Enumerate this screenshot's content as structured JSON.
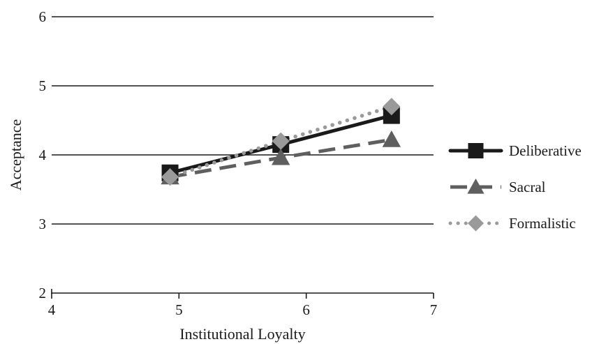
{
  "chart_data": {
    "type": "line",
    "xlabel": "Institutional Loyalty",
    "ylabel": "Acceptance",
    "xlim": [
      4,
      7
    ],
    "ylim": [
      2,
      6
    ],
    "xticks": [
      "4",
      "5",
      "6",
      "7"
    ],
    "yticks": [
      "2",
      "3",
      "4",
      "5",
      "6"
    ],
    "grid": "horizontal",
    "legend_position": "right",
    "series": [
      {
        "name": "Deliberative",
        "marker": "square",
        "line_style": "solid",
        "color": "#1a1a1a",
        "x": [
          4.93,
          5.8,
          6.67
        ],
        "y": [
          3.74,
          4.15,
          4.57
        ]
      },
      {
        "name": "Sacral",
        "marker": "triangle",
        "line_style": "dashed",
        "color": "#5f5f5f",
        "x": [
          4.93,
          5.8,
          6.67
        ],
        "y": [
          3.68,
          3.96,
          4.22
        ]
      },
      {
        "name": "Formalistic",
        "marker": "diamond",
        "line_style": "dotted",
        "color": "#9a9a9a",
        "x": [
          4.93,
          5.8,
          6.67
        ],
        "y": [
          3.68,
          4.2,
          4.7
        ]
      }
    ]
  }
}
